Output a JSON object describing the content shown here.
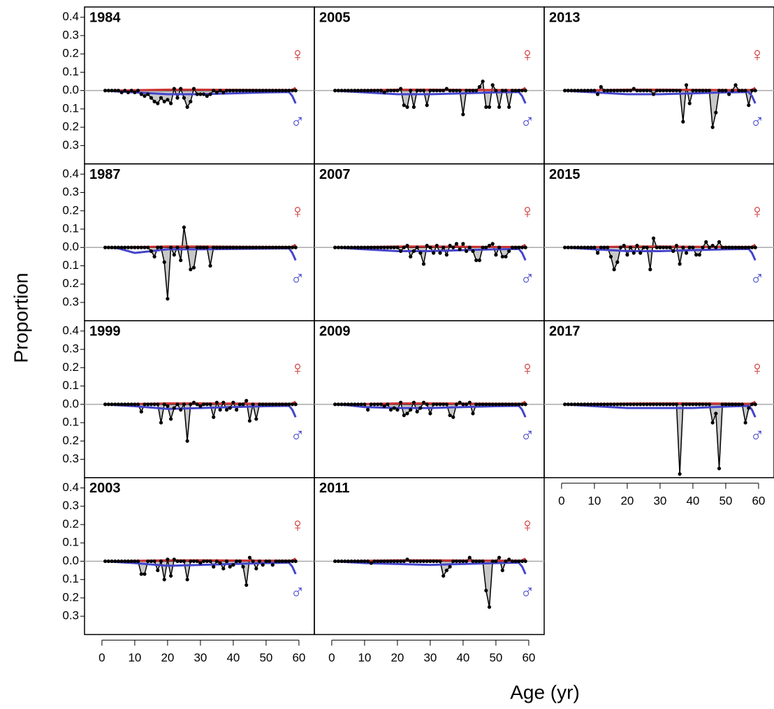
{
  "chart_data": {
    "type": "line",
    "xlabel": "Age (yr)",
    "ylabel": "Proportion",
    "xlim": [
      -5.3,
      64.7
    ],
    "xticks": [
      0,
      10,
      20,
      30,
      40,
      50,
      60
    ],
    "ylim": [
      -0.4,
      0.456
    ],
    "yticks": [
      0.4,
      0.3,
      0.2,
      0.1,
      {
        "value": 0,
        "label": "0.0"
      },
      {
        "value": -0.1,
        "label": "0.1"
      },
      {
        "value": -0.2,
        "label": "0.2"
      },
      {
        "value": -0.3,
        "label": "0.3"
      }
    ],
    "female_symbol": "♀",
    "male_symbol": "♂",
    "female_color": "#cc3333",
    "male_color": "#4444cc",
    "observed_color": "#000000",
    "fill_color": "#c8c8c8",
    "zero_line_color": "#aaaaaa",
    "x": [
      1,
      2,
      3,
      4,
      5,
      6,
      7,
      8,
      9,
      10,
      11,
      12,
      13,
      14,
      15,
      16,
      17,
      18,
      19,
      20,
      21,
      22,
      23,
      24,
      25,
      26,
      27,
      28,
      29,
      30,
      31,
      32,
      33,
      34,
      35,
      36,
      37,
      38,
      39,
      40,
      41,
      42,
      43,
      44,
      45,
      46,
      47,
      48,
      49,
      50,
      51,
      52,
      53,
      54,
      55,
      56,
      57,
      58,
      59
    ],
    "x_expected": [
      1,
      5,
      10,
      20,
      30,
      40,
      50,
      57,
      58,
      59
    ],
    "panels": [
      {
        "title": "1984",
        "observed": [
          0,
          0,
          0,
          0,
          0,
          -0.01,
          0,
          -0.01,
          0,
          -0.01,
          0,
          -0.02,
          -0.03,
          -0.02,
          -0.04,
          -0.06,
          -0.07,
          -0.04,
          -0.06,
          -0.05,
          -0.07,
          0.01,
          -0.04,
          0.01,
          -0.04,
          -0.09,
          -0.06,
          0.01,
          -0.02,
          -0.02,
          -0.02,
          -0.03,
          -0.02,
          0,
          -0.01,
          0,
          -0.01,
          0,
          0,
          0,
          0,
          0,
          0,
          0,
          0,
          0,
          0,
          0,
          0,
          0,
          0,
          0,
          0,
          0,
          0,
          0,
          0,
          0,
          0
        ],
        "expected_female": [
          0,
          0,
          0.002,
          0.005,
          0.005,
          0.004,
          0.003,
          0.003,
          0.004,
          0.015
        ],
        "expected_male": [
          0,
          -0.005,
          -0.01,
          -0.02,
          -0.02,
          -0.015,
          -0.01,
          -0.008,
          -0.03,
          -0.07
        ]
      },
      {
        "title": "1987",
        "observed": [
          0,
          0,
          0,
          0,
          0,
          0,
          0,
          0,
          0,
          0,
          0,
          0,
          0,
          0,
          -0.02,
          -0.05,
          0,
          0,
          -0.08,
          -0.28,
          0,
          -0.04,
          0,
          -0.07,
          0.11,
          0,
          -0.12,
          -0.11,
          0,
          0,
          0,
          0,
          -0.1,
          0,
          0,
          0,
          0,
          0,
          0,
          0,
          0,
          0,
          0,
          0,
          0,
          0,
          0,
          0,
          0,
          0,
          0,
          0,
          0,
          0,
          0,
          0,
          0,
          0,
          0
        ],
        "expected_female": [
          0,
          0,
          0.002,
          0.005,
          0.005,
          0.004,
          0.003,
          0.003,
          0.004,
          0.015
        ],
        "expected_male": [
          0,
          -0.005,
          -0.03,
          -0.01,
          -0.01,
          -0.008,
          -0.006,
          -0.005,
          -0.03,
          -0.07
        ]
      },
      {
        "title": "1999",
        "observed": [
          0,
          0,
          0,
          0,
          0,
          0,
          0,
          0,
          0,
          0,
          0,
          -0.04,
          0,
          0,
          0,
          0,
          0,
          -0.1,
          0,
          -0.01,
          -0.08,
          -0.02,
          0,
          -0.03,
          0,
          -0.2,
          0,
          0.01,
          0,
          -0.01,
          0,
          0,
          0,
          -0.07,
          0.01,
          -0.03,
          0.01,
          -0.03,
          -0.02,
          0.01,
          -0.03,
          0,
          0,
          0.02,
          -0.09,
          0,
          -0.08,
          0,
          0,
          0,
          0,
          0,
          0,
          0,
          0,
          0,
          0,
          0,
          0
        ],
        "expected_female": [
          0,
          0,
          0.002,
          0.005,
          0.005,
          0.004,
          0.003,
          0.003,
          0.004,
          0.015
        ],
        "expected_male": [
          0,
          -0.005,
          -0.01,
          -0.025,
          -0.02,
          -0.015,
          -0.01,
          -0.008,
          -0.03,
          -0.07
        ]
      },
      {
        "title": "2003",
        "observed": [
          0,
          0,
          0,
          0,
          0,
          0,
          0,
          0,
          0,
          0,
          0,
          -0.07,
          -0.07,
          0,
          0,
          0,
          -0.05,
          0,
          -0.1,
          0.01,
          -0.08,
          0.01,
          0,
          0,
          0,
          -0.1,
          0,
          0,
          0,
          -0.01,
          0,
          0,
          0,
          -0.03,
          0,
          -0.01,
          -0.04,
          0,
          -0.03,
          -0.02,
          0,
          0,
          -0.03,
          -0.13,
          0.02,
          0,
          -0.04,
          0,
          -0.02,
          0,
          0,
          -0.02,
          0,
          0,
          0,
          0,
          0,
          0,
          0
        ],
        "expected_female": [
          0,
          0,
          0.002,
          0.005,
          0.005,
          0.004,
          0.003,
          0.003,
          0.004,
          0.015
        ],
        "expected_male": [
          0,
          -0.005,
          -0.01,
          -0.025,
          -0.02,
          -0.015,
          -0.01,
          -0.008,
          -0.03,
          -0.07
        ]
      },
      {
        "title": "2005",
        "observed": [
          0,
          0,
          0,
          0,
          0,
          0,
          0,
          0,
          0,
          0,
          0,
          0,
          0,
          0,
          0,
          -0.01,
          0,
          0,
          0,
          0,
          0.01,
          -0.08,
          -0.09,
          0,
          -0.09,
          0,
          0,
          0,
          -0.08,
          0,
          0,
          0,
          0,
          0,
          0.01,
          0,
          0,
          0,
          0,
          -0.13,
          0,
          0,
          0,
          0,
          0.02,
          0.05,
          -0.09,
          -0.09,
          0.03,
          0,
          -0.09,
          0,
          0,
          -0.09,
          0,
          0,
          0,
          0,
          0
        ],
        "expected_female": [
          0,
          0,
          0.002,
          0.005,
          0.005,
          0.004,
          0.003,
          0.003,
          0.004,
          0.015
        ],
        "expected_male": [
          0,
          -0.005,
          -0.01,
          -0.02,
          -0.02,
          -0.015,
          -0.01,
          -0.008,
          -0.03,
          -0.07
        ]
      },
      {
        "title": "2007",
        "observed": [
          0,
          0,
          0,
          0,
          0,
          0,
          0,
          0,
          0,
          0,
          0,
          0,
          0,
          0,
          0,
          0,
          0,
          0,
          0,
          0,
          -0.02,
          0,
          0.01,
          -0.05,
          -0.02,
          0,
          -0.03,
          -0.09,
          0.01,
          0,
          -0.03,
          0.01,
          -0.03,
          0,
          -0.04,
          0.01,
          0,
          0.02,
          -0.01,
          0.02,
          -0.02,
          0,
          -0.02,
          -0.07,
          -0.07,
          0,
          0,
          0.01,
          0.02,
          -0.04,
          0,
          -0.05,
          -0.05,
          -0.02,
          0,
          0,
          0,
          0,
          0
        ],
        "expected_female": [
          0,
          0,
          0.002,
          0.005,
          0.005,
          0.004,
          0.003,
          0.003,
          0.004,
          0.015
        ],
        "expected_male": [
          0,
          -0.005,
          -0.01,
          -0.02,
          -0.02,
          -0.015,
          -0.01,
          -0.008,
          -0.03,
          -0.07
        ]
      },
      {
        "title": "2009",
        "observed": [
          0,
          0,
          0,
          0,
          0,
          0,
          0,
          0,
          0,
          0,
          -0.03,
          0,
          0,
          0,
          0,
          -0.01,
          0,
          -0.03,
          -0.02,
          -0.03,
          0.01,
          -0.06,
          -0.05,
          -0.03,
          0.01,
          -0.04,
          -0.02,
          0.01,
          0,
          -0.05,
          0,
          0,
          0,
          0,
          0,
          -0.06,
          -0.07,
          0,
          0.01,
          0,
          0,
          0.01,
          -0.05,
          0,
          0,
          0,
          0,
          0,
          0,
          0,
          0,
          0,
          0,
          0,
          0,
          0,
          0,
          0,
          0
        ],
        "expected_female": [
          0,
          0,
          0.002,
          0.005,
          0.005,
          0.004,
          0.003,
          0.003,
          0.004,
          0.015
        ],
        "expected_male": [
          0,
          -0.005,
          -0.015,
          -0.02,
          -0.02,
          -0.015,
          -0.01,
          -0.008,
          -0.03,
          -0.07
        ]
      },
      {
        "title": "2011",
        "observed": [
          0,
          0,
          0,
          0,
          0,
          0,
          0,
          0,
          0,
          0,
          0,
          -0.01,
          0,
          0,
          0,
          0,
          0,
          0,
          0,
          0,
          0,
          0,
          0.01,
          0,
          0,
          0,
          0,
          0,
          0,
          0,
          0,
          0,
          0,
          -0.08,
          -0.05,
          -0.03,
          0,
          0,
          0,
          0,
          0,
          0.02,
          0,
          0,
          0,
          0,
          -0.16,
          -0.25,
          0,
          0,
          0.02,
          -0.05,
          0,
          0.01,
          0,
          0,
          0,
          0,
          0
        ],
        "expected_female": [
          0,
          0,
          0.002,
          0.005,
          0.005,
          0.004,
          0.003,
          0.003,
          0.004,
          0.015
        ],
        "expected_male": [
          0,
          -0.005,
          -0.01,
          -0.015,
          -0.02,
          -0.015,
          -0.01,
          -0.008,
          -0.03,
          -0.07
        ]
      },
      {
        "title": "2013",
        "observed": [
          0,
          0,
          0,
          0,
          0,
          0,
          0,
          0,
          0,
          0,
          -0.02,
          0.02,
          0,
          0,
          0,
          0,
          0,
          0,
          0,
          0,
          0,
          0.01,
          0,
          0,
          0,
          0,
          0,
          -0.02,
          0,
          0,
          0,
          0,
          0,
          0,
          0,
          0,
          -0.17,
          0.03,
          -0.07,
          0,
          0,
          0,
          0,
          0,
          0,
          -0.2,
          -0.12,
          0,
          0,
          0,
          -0.02,
          0,
          0.03,
          0,
          0,
          0,
          -0.08,
          0,
          0
        ],
        "expected_female": [
          0,
          0,
          0.002,
          0.005,
          0.005,
          0.004,
          0.003,
          0.003,
          0.004,
          0.015
        ],
        "expected_male": [
          0,
          -0.005,
          -0.01,
          -0.02,
          -0.02,
          -0.015,
          -0.01,
          -0.008,
          -0.03,
          -0.07
        ]
      },
      {
        "title": "2015",
        "observed": [
          0,
          0,
          0,
          0,
          0,
          0,
          0,
          0,
          0,
          0,
          -0.03,
          0,
          0,
          0,
          -0.05,
          -0.12,
          -0.08,
          0,
          0.01,
          -0.04,
          0,
          -0.03,
          0.01,
          -0.03,
          0,
          0,
          -0.12,
          0.05,
          0,
          0,
          0,
          0,
          0,
          -0.02,
          0.01,
          -0.09,
          0,
          -0.03,
          0,
          0,
          -0.04,
          -0.04,
          0,
          0.03,
          0,
          0.01,
          0,
          0.03,
          0,
          0,
          0,
          0,
          0,
          0,
          0,
          0,
          0,
          0,
          0
        ],
        "expected_female": [
          0,
          0,
          0.002,
          0.005,
          0.005,
          0.004,
          0.003,
          0.003,
          0.004,
          0.015
        ],
        "expected_male": [
          0,
          -0.005,
          -0.01,
          -0.02,
          -0.02,
          -0.015,
          -0.01,
          -0.008,
          -0.03,
          -0.07
        ]
      },
      {
        "title": "2017",
        "observed": [
          0,
          0,
          0,
          0,
          0,
          0,
          0,
          0,
          0,
          0,
          0,
          0,
          0,
          0,
          0,
          0,
          0,
          0,
          0,
          0,
          0,
          0,
          0,
          0,
          0,
          0,
          0,
          0,
          0,
          0,
          0,
          0,
          0,
          0,
          0,
          -0.38,
          0,
          0,
          0,
          0,
          0,
          0,
          0,
          0,
          0,
          -0.1,
          -0.05,
          -0.35,
          0,
          0,
          0,
          0,
          0,
          0,
          0,
          -0.1,
          -0.02,
          0,
          0
        ],
        "expected_female": [
          0,
          0,
          0.002,
          0.004,
          0.005,
          0.005,
          0.004,
          0.003,
          0.004,
          0.015
        ],
        "expected_male": [
          0,
          -0.005,
          -0.01,
          -0.02,
          -0.02,
          -0.02,
          -0.012,
          -0.008,
          -0.03,
          -0.07
        ]
      }
    ]
  }
}
